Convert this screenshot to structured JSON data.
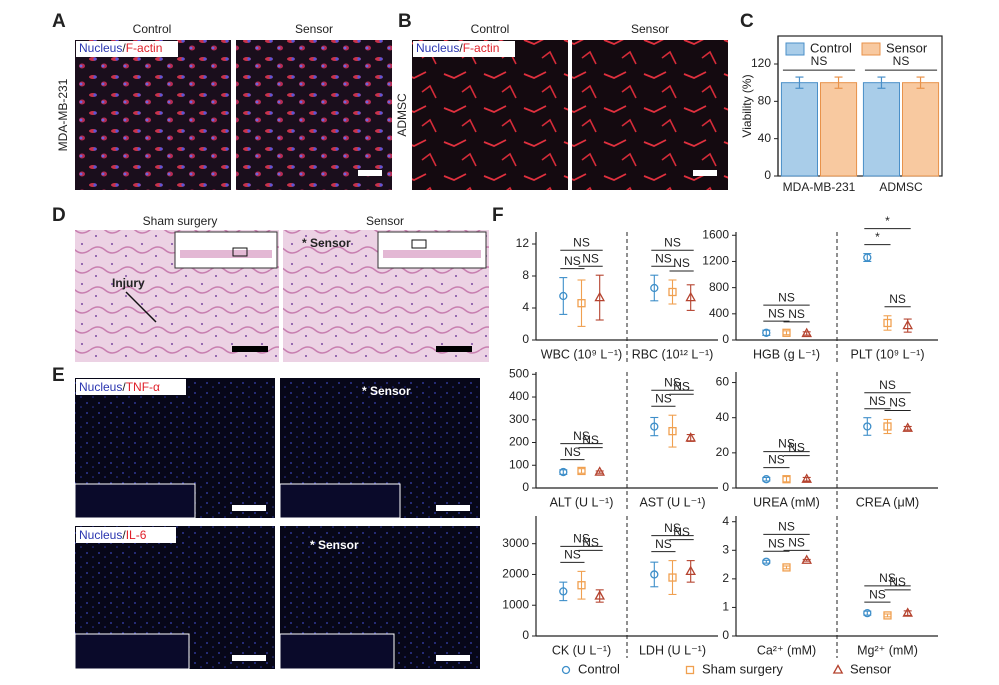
{
  "panel_labels": [
    "A",
    "B",
    "C",
    "D",
    "E",
    "F"
  ],
  "panel_a": {
    "columns": [
      "Control",
      "Sensor"
    ],
    "stain": [
      "Nucleus",
      "/",
      "F-actin"
    ],
    "row_label": "MDA-MB-231"
  },
  "panel_b": {
    "columns": [
      "Control",
      "Sensor"
    ],
    "stain": [
      "Nucleus",
      "/",
      "F-actin"
    ],
    "row_label": "ADMSC"
  },
  "panel_d": {
    "columns": [
      "Sham surgery",
      "Sensor"
    ],
    "marker": "* Sensor",
    "injury": "Injury"
  },
  "panel_e": {
    "rows": [
      {
        "stain": [
          "Nucleus",
          "/",
          "TNF-α"
        ],
        "marker": "* Sensor"
      },
      {
        "stain": [
          "Nucleus",
          "/",
          "IL-6"
        ],
        "marker": "* Sensor"
      }
    ]
  },
  "chart_data": [
    {
      "type": "bar",
      "ylabel": "Viability (%)",
      "categories": [
        "MDA-MB-231",
        "ADMSC"
      ],
      "series": [
        {
          "name": "Control",
          "color": "#a9cde9",
          "edge_color": "#4a8fc8",
          "values": [
            100,
            100
          ],
          "errors": [
            6,
            6
          ]
        },
        {
          "name": "Sensor",
          "color": "#f8c9a0",
          "edge_color": "#e8924a",
          "values": [
            100,
            100
          ],
          "errors": [
            6,
            6
          ]
        }
      ],
      "annotations": [
        {
          "text": "NS",
          "category": 0
        },
        {
          "text": "NS",
          "category": 1
        }
      ],
      "ylim": [
        0,
        150
      ],
      "yticks": [
        0,
        40,
        80,
        120
      ],
      "legend": "top"
    },
    {
      "type": "errorplot",
      "categories": [
        "WBC (10⁹ L⁻¹)",
        "RBC (10¹² L⁻¹)"
      ],
      "series": [
        {
          "values": [
            5.5,
            6.5
          ],
          "errors": [
            2.3,
            1.6
          ]
        },
        {
          "values": [
            4.6,
            6.0
          ],
          "errors": [
            2.9,
            1.5
          ]
        },
        {
          "values": [
            5.3,
            5.3
          ],
          "errors": [
            2.8,
            1.6
          ]
        }
      ],
      "annotations": [
        {
          "text": "NS",
          "category": 0,
          "from": 0,
          "to": 2
        },
        {
          "text": "NS",
          "category": 0,
          "from": 0,
          "to": 1
        },
        {
          "text": "NS",
          "category": 0,
          "from": 1,
          "to": 2
        },
        {
          "text": "NS",
          "category": 1,
          "from": 0,
          "to": 2
        },
        {
          "text": "NS",
          "category": 1,
          "from": 0,
          "to": 1
        },
        {
          "text": "NS",
          "category": 1,
          "from": 1,
          "to": 2
        }
      ],
      "ylim": [
        0,
        13.5
      ],
      "yticks": [
        0,
        4,
        8,
        12
      ]
    },
    {
      "type": "errorplot",
      "categories": [
        "HGB (g L⁻¹)",
        "PLT (10⁹ L⁻¹)"
      ],
      "series": [
        {
          "values": [
            110,
            1260
          ],
          "errors": [
            40,
            60
          ]
        },
        {
          "values": [
            110,
            260
          ],
          "errors": [
            30,
            110
          ]
        },
        {
          "values": [
            100,
            220
          ],
          "errors": [
            25,
            100
          ]
        }
      ],
      "annotations": [
        {
          "text": "NS",
          "category": 0,
          "from": 0,
          "to": 2
        },
        {
          "text": "NS",
          "category": 0,
          "from": 0,
          "to": 1
        },
        {
          "text": "NS",
          "category": 0,
          "from": 1,
          "to": 2
        },
        {
          "text": "*",
          "category": 1,
          "from": 0,
          "to": 2
        },
        {
          "text": "*",
          "category": 1,
          "from": 0,
          "to": 1
        },
        {
          "text": "NS",
          "category": 1,
          "from": 1,
          "to": 2
        }
      ],
      "ylim": [
        0,
        1650
      ],
      "yticks": [
        0,
        400,
        800,
        1200,
        1600
      ]
    },
    {
      "type": "errorplot",
      "categories": [
        "ALT (U L⁻¹)",
        "AST (U L⁻¹)"
      ],
      "series": [
        {
          "values": [
            70,
            270
          ],
          "errors": [
            10,
            40
          ]
        },
        {
          "values": [
            75,
            250
          ],
          "errors": [
            10,
            70
          ]
        },
        {
          "values": [
            70,
            220
          ],
          "errors": [
            5,
            15
          ]
        }
      ],
      "annotations": [
        {
          "text": "NS",
          "category": 0,
          "from": 0,
          "to": 2
        },
        {
          "text": "NS",
          "category": 0,
          "from": 0,
          "to": 1
        },
        {
          "text": "NS",
          "category": 0,
          "from": 1,
          "to": 2
        },
        {
          "text": "NS",
          "category": 1,
          "from": 0,
          "to": 2
        },
        {
          "text": "NS",
          "category": 1,
          "from": 0,
          "to": 1
        },
        {
          "text": "NS",
          "category": 1,
          "from": 1,
          "to": 2
        }
      ],
      "ylim": [
        0,
        510
      ],
      "yticks": [
        0,
        100,
        200,
        300,
        400,
        500
      ]
    },
    {
      "type": "errorplot",
      "categories": [
        "UREA (mM)",
        "CREA (μM)"
      ],
      "series": [
        {
          "values": [
            5,
            35
          ],
          "errors": [
            1,
            5
          ]
        },
        {
          "values": [
            5,
            35
          ],
          "errors": [
            1.5,
            4
          ]
        },
        {
          "values": [
            5,
            34
          ],
          "errors": [
            1,
            1
          ]
        }
      ],
      "annotations": [
        {
          "text": "NS",
          "category": 0,
          "from": 0,
          "to": 2
        },
        {
          "text": "NS",
          "category": 0,
          "from": 0,
          "to": 1
        },
        {
          "text": "NS",
          "category": 0,
          "from": 1,
          "to": 2
        },
        {
          "text": "NS",
          "category": 1,
          "from": 0,
          "to": 2
        },
        {
          "text": "NS",
          "category": 1,
          "from": 0,
          "to": 1
        },
        {
          "text": "NS",
          "category": 1,
          "from": 1,
          "to": 2
        }
      ],
      "ylim": [
        0,
        66
      ],
      "yticks": [
        0,
        20,
        40,
        60
      ]
    },
    {
      "type": "errorplot",
      "categories": [
        "CK (U L⁻¹)",
        "LDH (U L⁻¹)"
      ],
      "series": [
        {
          "values": [
            1450,
            2000
          ],
          "errors": [
            300,
            400
          ]
        },
        {
          "values": [
            1650,
            1900
          ],
          "errors": [
            450,
            550
          ]
        },
        {
          "values": [
            1300,
            2100
          ],
          "errors": [
            200,
            350
          ]
        }
      ],
      "annotations": [
        {
          "text": "NS",
          "category": 0,
          "from": 0,
          "to": 2
        },
        {
          "text": "NS",
          "category": 0,
          "from": 0,
          "to": 1
        },
        {
          "text": "NS",
          "category": 0,
          "from": 1,
          "to": 2
        },
        {
          "text": "NS",
          "category": 1,
          "from": 0,
          "to": 2
        },
        {
          "text": "NS",
          "category": 1,
          "from": 0,
          "to": 1
        },
        {
          "text": "NS",
          "category": 1,
          "from": 1,
          "to": 2
        }
      ],
      "ylim": [
        0,
        3900
      ],
      "yticks": [
        0,
        1000,
        2000,
        3000
      ]
    },
    {
      "type": "errorplot",
      "categories": [
        "Ca²⁺ (mM)",
        "Mg²⁺ (mM)"
      ],
      "series": [
        {
          "values": [
            2.6,
            0.8
          ],
          "errors": [
            0.05,
            0.07
          ]
        },
        {
          "values": [
            2.4,
            0.72
          ],
          "errors": [
            0.05,
            0.05
          ]
        },
        {
          "values": [
            2.65,
            0.8
          ],
          "errors": [
            0.03,
            0.08
          ]
        }
      ],
      "annotations": [
        {
          "text": "NS",
          "category": 0,
          "from": 0,
          "to": 2
        },
        {
          "text": "NS",
          "category": 0,
          "from": 0,
          "to": 1
        },
        {
          "text": "NS",
          "category": 0,
          "from": 1,
          "to": 2
        },
        {
          "text": "NS",
          "category": 1,
          "from": 0,
          "to": 2
        },
        {
          "text": "NS",
          "category": 1,
          "from": 0,
          "to": 1
        },
        {
          "text": "NS",
          "category": 1,
          "from": 1,
          "to": 2
        }
      ],
      "ylim": [
        0,
        4.2
      ],
      "yticks": [
        0,
        1,
        2,
        3,
        4
      ]
    }
  ],
  "legend_f": [
    {
      "name": "Control",
      "color": "#3d8ec9",
      "marker": "circle"
    },
    {
      "name": "Sham surgery",
      "color": "#f0a050",
      "marker": "square"
    },
    {
      "name": "Sensor",
      "color": "#b5432f",
      "marker": "triangle"
    }
  ]
}
